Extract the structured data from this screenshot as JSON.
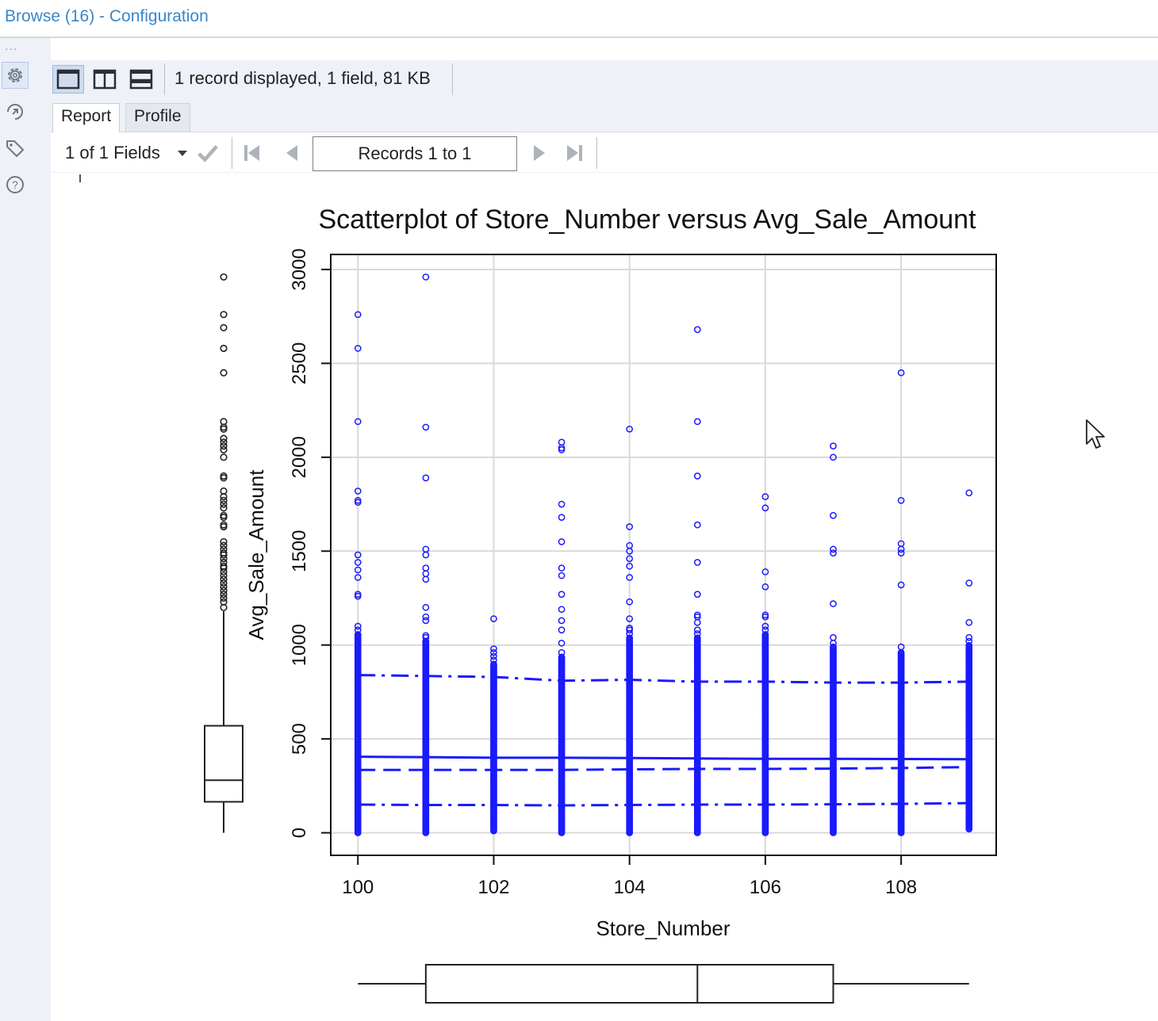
{
  "window": {
    "title": "Browse (16) - Configuration"
  },
  "rail": {
    "dots": "...",
    "icons": [
      "gear-icon",
      "navigate-icon",
      "tag-icon",
      "help-icon"
    ]
  },
  "toolbar": {
    "layouts": [
      "single-pane-icon",
      "split-vertical-icon",
      "split-horizontal-icon"
    ],
    "record_info": "1 record displayed, 1 field, 81 KB"
  },
  "tabs": [
    {
      "label": "Report",
      "active": true
    },
    {
      "label": "Profile",
      "active": false
    }
  ],
  "navigator": {
    "fields_label": "1 of 1 Fields",
    "records_label": "Records 1 to 1"
  },
  "chart_data": {
    "type": "scatter",
    "title": "Scatterplot of Store_Number versus Avg_Sale_Amount",
    "xlabel": "Store_Number",
    "ylabel": "Avg_Sale_Amount",
    "xlim": [
      99.6,
      109.4
    ],
    "ylim": [
      -120,
      3080
    ],
    "xticks": [
      100,
      102,
      104,
      106,
      108
    ],
    "yticks": [
      0,
      500,
      1000,
      1500,
      2000,
      2500,
      3000
    ],
    "grid": true,
    "point_color": "#1a1aff",
    "outlier_points": [
      [
        100,
        2760
      ],
      [
        100,
        2580
      ],
      [
        100,
        2190
      ],
      [
        100,
        1820
      ],
      [
        100,
        1770
      ],
      [
        100,
        1760
      ],
      [
        100,
        1480
      ],
      [
        100,
        1440
      ],
      [
        100,
        1400
      ],
      [
        100,
        1360
      ],
      [
        100,
        1270
      ],
      [
        100,
        1260
      ],
      [
        100,
        1100
      ],
      [
        100,
        1080
      ],
      [
        101,
        2960
      ],
      [
        101,
        2160
      ],
      [
        101,
        1890
      ],
      [
        101,
        1510
      ],
      [
        101,
        1480
      ],
      [
        101,
        1410
      ],
      [
        101,
        1380
      ],
      [
        101,
        1350
      ],
      [
        101,
        1200
      ],
      [
        101,
        1150
      ],
      [
        101,
        1130
      ],
      [
        101,
        1050
      ],
      [
        101,
        1040
      ],
      [
        102,
        1140
      ],
      [
        102,
        980
      ],
      [
        102,
        960
      ],
      [
        102,
        940
      ],
      [
        102,
        920
      ],
      [
        103,
        2080
      ],
      [
        103,
        2050
      ],
      [
        103,
        2040
      ],
      [
        103,
        1750
      ],
      [
        103,
        1680
      ],
      [
        103,
        1550
      ],
      [
        103,
        1410
      ],
      [
        103,
        1370
      ],
      [
        103,
        1270
      ],
      [
        103,
        1190
      ],
      [
        103,
        1130
      ],
      [
        103,
        1080
      ],
      [
        103,
        1010
      ],
      [
        103,
        960
      ],
      [
        104,
        2150
      ],
      [
        104,
        1630
      ],
      [
        104,
        1530
      ],
      [
        104,
        1500
      ],
      [
        104,
        1460
      ],
      [
        104,
        1420
      ],
      [
        104,
        1360
      ],
      [
        104,
        1230
      ],
      [
        104,
        1140
      ],
      [
        104,
        1090
      ],
      [
        104,
        1080
      ],
      [
        104,
        1060
      ],
      [
        105,
        2680
      ],
      [
        105,
        2190
      ],
      [
        105,
        1900
      ],
      [
        105,
        1640
      ],
      [
        105,
        1440
      ],
      [
        105,
        1270
      ],
      [
        105,
        1160
      ],
      [
        105,
        1150
      ],
      [
        105,
        1120
      ],
      [
        105,
        1080
      ],
      [
        105,
        1060
      ],
      [
        106,
        1790
      ],
      [
        106,
        1730
      ],
      [
        106,
        1390
      ],
      [
        106,
        1310
      ],
      [
        106,
        1160
      ],
      [
        106,
        1150
      ],
      [
        106,
        1100
      ],
      [
        106,
        1080
      ],
      [
        107,
        2060
      ],
      [
        107,
        2000
      ],
      [
        107,
        1690
      ],
      [
        107,
        1510
      ],
      [
        107,
        1490
      ],
      [
        107,
        1220
      ],
      [
        107,
        1040
      ],
      [
        107,
        1010
      ],
      [
        108,
        2450
      ],
      [
        108,
        1770
      ],
      [
        108,
        1540
      ],
      [
        108,
        1510
      ],
      [
        108,
        1490
      ],
      [
        108,
        1320
      ],
      [
        108,
        990
      ],
      [
        109,
        1810
      ],
      [
        109,
        1330
      ],
      [
        109,
        1120
      ],
      [
        109,
        1040
      ],
      [
        109,
        1020
      ]
    ],
    "dense_ranges": [
      {
        "x": 100,
        "min": 0,
        "max": 1060
      },
      {
        "x": 101,
        "min": 0,
        "max": 1020
      },
      {
        "x": 102,
        "min": 10,
        "max": 900
      },
      {
        "x": 103,
        "min": 0,
        "max": 940
      },
      {
        "x": 104,
        "min": 0,
        "max": 1040
      },
      {
        "x": 105,
        "min": 0,
        "max": 1040
      },
      {
        "x": 106,
        "min": 0,
        "max": 1060
      },
      {
        "x": 107,
        "min": 0,
        "max": 990
      },
      {
        "x": 108,
        "min": 0,
        "max": 960
      },
      {
        "x": 109,
        "min": 20,
        "max": 1000
      }
    ],
    "smooth_lines": [
      {
        "name": "upper",
        "style": "dashdot",
        "x": [
          100,
          101,
          102,
          103,
          104,
          105,
          106,
          107,
          108,
          109
        ],
        "y": [
          840,
          835,
          830,
          810,
          815,
          805,
          805,
          800,
          800,
          805
        ]
      },
      {
        "name": "fit",
        "style": "solid",
        "x": [
          100,
          101,
          102,
          103,
          104,
          105,
          106,
          107,
          108,
          109
        ],
        "y": [
          405,
          403,
          400,
          400,
          398,
          396,
          394,
          394,
          393,
          392
        ]
      },
      {
        "name": "median",
        "style": "dashed",
        "x": [
          100,
          101,
          102,
          103,
          104,
          105,
          106,
          107,
          108,
          109
        ],
        "y": [
          335,
          335,
          335,
          335,
          338,
          340,
          340,
          342,
          345,
          350
        ]
      },
      {
        "name": "lower",
        "style": "dashdot",
        "x": [
          100,
          101,
          102,
          103,
          104,
          105,
          106,
          107,
          108,
          109
        ],
        "y": [
          150,
          148,
          148,
          146,
          148,
          150,
          150,
          152,
          154,
          158
        ]
      }
    ],
    "y_boxplot": {
      "min": 0,
      "q1": 165,
      "median": 280,
      "q3": 570,
      "whisker_max": 1180,
      "outliers": [
        2960,
        2760,
        2690,
        2580,
        2450,
        2190,
        2160,
        2150,
        2100,
        2080,
        2060,
        2040,
        2000,
        1900,
        1890,
        1820,
        1790,
        1770,
        1750,
        1730,
        1690,
        1680,
        1640,
        1630,
        1550,
        1530,
        1510,
        1490,
        1480,
        1460,
        1440,
        1420,
        1410,
        1390,
        1370,
        1350,
        1330,
        1310,
        1290,
        1270,
        1250,
        1230,
        1200
      ]
    },
    "x_boxplot": {
      "min": 100,
      "q1": 101,
      "median": 105,
      "q3": 107,
      "max": 109
    }
  }
}
